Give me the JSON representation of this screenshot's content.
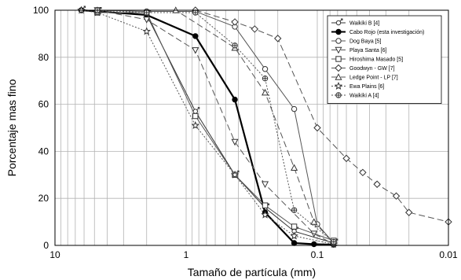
{
  "chart_data": {
    "type": "line",
    "xlabel": "Tamaño de partícula (mm)",
    "ylabel": "Porcentaje mas fino",
    "x_scale": "log",
    "x_reversed": true,
    "xlim": [
      10,
      0.01
    ],
    "ylim": [
      0,
      100
    ],
    "x_ticks": [
      10,
      1,
      0.1,
      0.01
    ],
    "x_tick_labels": [
      "10",
      "1",
      "0.1",
      "0.01"
    ],
    "y_ticks": [
      0,
      20,
      40,
      60,
      80,
      100
    ],
    "y_tick_labels": [
      "0",
      "20",
      "40",
      "60",
      "80",
      "100"
    ],
    "grid": true,
    "legend_position": "top-right",
    "series": [
      {
        "name": "Waikiki B [4]",
        "line": "solid",
        "color": "#333333",
        "marker": "male",
        "x": [
          6.3,
          4.75,
          2.0,
          0.85,
          0.425,
          0.25,
          0.15,
          0.075
        ],
        "y": [
          100,
          99.5,
          98,
          57,
          30,
          16,
          6,
          1
        ]
      },
      {
        "name": "Cabo Rojo (esta investigación)",
        "line": "solid-thick",
        "color": "#000000",
        "marker": "filled-circle",
        "x": [
          6.3,
          2.0,
          0.85,
          0.425,
          0.25,
          0.15,
          0.106,
          0.075
        ],
        "y": [
          100,
          98,
          89,
          62,
          14,
          1,
          0.5,
          0.3
        ]
      },
      {
        "name": "Dog Baya [5]",
        "line": "solid",
        "color": "#555555",
        "marker": "open-circle",
        "x": [
          4.75,
          2.0,
          0.85,
          0.425,
          0.25,
          0.15,
          0.1,
          0.075
        ],
        "y": [
          100,
          99.5,
          99.5,
          93,
          75,
          58,
          9,
          1
        ]
      },
      {
        "name": "Playa Santa [6]",
        "line": "dashed",
        "color": "#555555",
        "marker": "open-tri-down",
        "x": [
          4.75,
          2.0,
          0.85,
          0.425,
          0.25,
          0.106,
          0.075
        ],
        "y": [
          100,
          96,
          83,
          44,
          26,
          5,
          0.5
        ]
      },
      {
        "name": "Hiroshima Masado [5]",
        "line": "solid",
        "color": "#555555",
        "marker": "open-square",
        "x": [
          4.75,
          2.0,
          0.85,
          0.425,
          0.25,
          0.15,
          0.075
        ],
        "y": [
          99,
          99,
          55,
          30,
          17,
          8,
          2
        ]
      },
      {
        "name": "Goodwyn - GW [7]",
        "line": "dashed",
        "color": "#555555",
        "marker": "open-diamond",
        "x": [
          0.85,
          0.425,
          0.3,
          0.2,
          0.1,
          0.06,
          0.045,
          0.035,
          0.025,
          0.02,
          0.01
        ],
        "y": [
          100,
          95,
          92,
          88,
          50,
          37,
          31,
          26,
          21,
          14,
          10
        ]
      },
      {
        "name": "Ledge Point - LP [7]",
        "line": "dashed",
        "color": "#555555",
        "marker": "open-tri-up",
        "x": [
          4.75,
          1.2,
          0.425,
          0.25,
          0.15,
          0.106,
          0.075
        ],
        "y": [
          100,
          100,
          84,
          65,
          33,
          10,
          1
        ]
      },
      {
        "name": "Ewa Plains [6]",
        "line": "dotted",
        "color": "#555555",
        "marker": "star",
        "x": [
          6.3,
          4.75,
          2.0,
          0.85,
          0.425,
          0.25,
          0.15,
          0.075
        ],
        "y": [
          100,
          99,
          91,
          51,
          30,
          13,
          4,
          0.5
        ]
      },
      {
        "name": "Waikiki A [4]",
        "line": "dotted",
        "color": "#555555",
        "marker": "circle-plus",
        "x": [
          4.75,
          2.0,
          0.85,
          0.425,
          0.25,
          0.15,
          0.075
        ],
        "y": [
          100,
          99,
          99,
          85,
          71,
          15,
          1.5
        ]
      }
    ]
  }
}
